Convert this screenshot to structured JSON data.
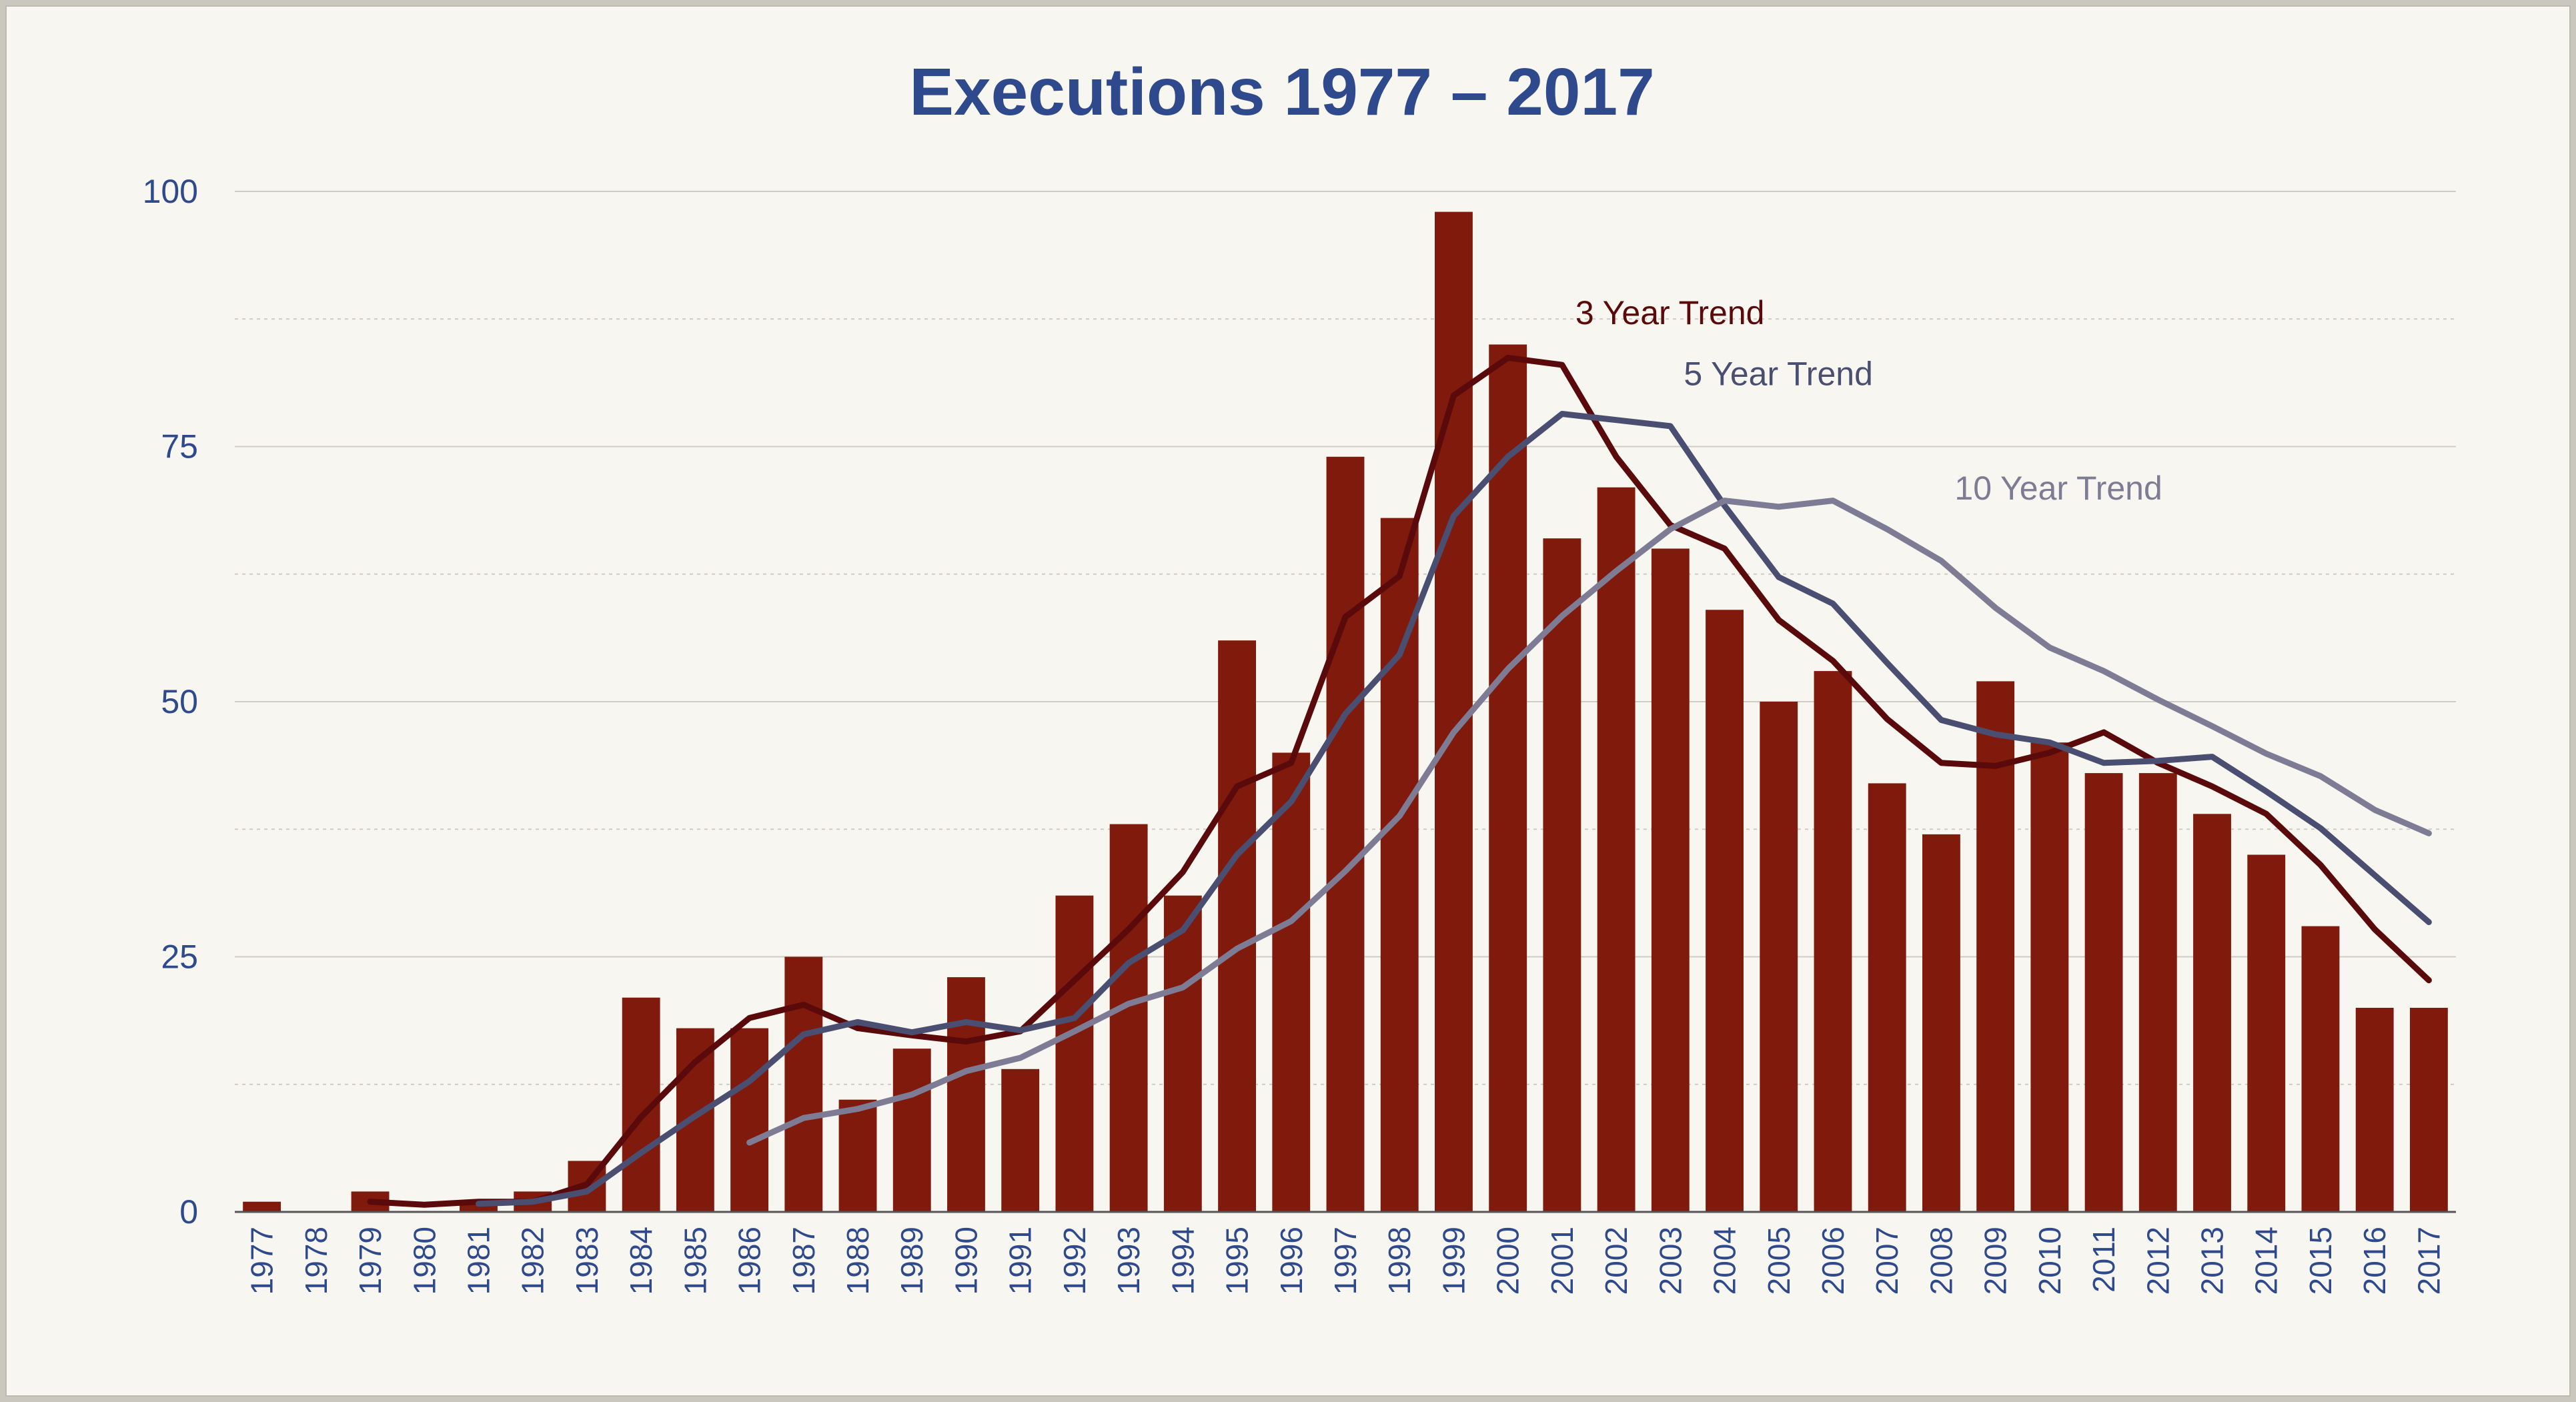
{
  "chart_data": {
    "type": "bar",
    "title": "Executions 1977 – 2017",
    "xlabel": "",
    "ylabel": "",
    "ylim": [
      0,
      100
    ],
    "yticks": [
      0,
      25,
      50,
      75,
      100
    ],
    "grid": true,
    "categories": [
      "1977",
      "1978",
      "1979",
      "1980",
      "1981",
      "1982",
      "1983",
      "1984",
      "1985",
      "1986",
      "1987",
      "1988",
      "1989",
      "1990",
      "1991",
      "1992",
      "1993",
      "1994",
      "1995",
      "1996",
      "1997",
      "1998",
      "1999",
      "2000",
      "2001",
      "2002",
      "2003",
      "2004",
      "2005",
      "2006",
      "2007",
      "2008",
      "2009",
      "2010",
      "2011",
      "2012",
      "2013",
      "2014",
      "2015",
      "2016",
      "2017"
    ],
    "values": [
      1,
      0,
      2,
      0,
      1,
      2,
      5,
      21,
      18,
      18,
      25,
      11,
      16,
      23,
      14,
      31,
      38,
      31,
      56,
      45,
      74,
      68,
      98,
      85,
      66,
      71,
      65,
      59,
      50,
      53,
      42,
      37,
      52,
      46,
      43,
      43,
      39,
      35,
      28,
      20,
      20
    ],
    "series": [
      {
        "name": "3 Year Trend",
        "type": "line",
        "color": "#5a0a0a",
        "values": [
          null,
          null,
          1.0,
          0.7,
          1.0,
          1.0,
          2.7,
          9.3,
          14.7,
          19.0,
          20.3,
          18.0,
          17.3,
          16.7,
          17.7,
          22.7,
          27.7,
          33.3,
          41.7,
          44.0,
          58.3,
          62.3,
          80.0,
          83.7,
          83.0,
          74.0,
          67.3,
          65.0,
          58.0,
          54.0,
          48.3,
          44.0,
          43.7,
          45.0,
          47.0,
          44.0,
          41.7,
          39.0,
          34.0,
          27.7,
          22.7
        ]
      },
      {
        "name": "5 Year Trend",
        "type": "line",
        "color": "#4a4f72",
        "values": [
          null,
          null,
          null,
          null,
          0.8,
          1.0,
          2.0,
          5.8,
          9.4,
          12.8,
          17.4,
          18.6,
          17.6,
          18.6,
          17.8,
          19.0,
          24.4,
          27.6,
          35.0,
          40.2,
          48.8,
          54.6,
          68.2,
          74.0,
          78.2,
          77.6,
          77.0,
          69.2,
          62.2,
          59.6,
          53.8,
          48.2,
          46.8,
          46.0,
          44.0,
          44.2,
          44.6,
          41.2,
          37.6,
          33.0,
          28.4
        ]
      },
      {
        "name": "10 Year Trend",
        "type": "line",
        "color": "#7e7b95",
        "values": [
          null,
          null,
          null,
          null,
          null,
          null,
          null,
          null,
          null,
          6.8,
          9.2,
          10.1,
          11.5,
          13.8,
          15.1,
          17.7,
          20.4,
          22.0,
          25.8,
          28.5,
          33.4,
          38.8,
          47.0,
          53.2,
          58.4,
          62.8,
          66.9,
          69.7,
          69.1,
          69.7,
          66.9,
          63.8,
          59.2,
          55.3,
          53.0,
          50.2,
          47.6,
          44.9,
          42.7,
          39.4,
          37.1
        ]
      }
    ],
    "annotations": [
      "3 Year Trend",
      "5 Year Trend",
      "10 Year Trend"
    ]
  },
  "colors": {
    "bar": "#7f1a0c",
    "title": "#2e4a8c",
    "axis_text": "#2e4a8c",
    "grid": "#cfccc4",
    "background": "#f8f6f0"
  }
}
